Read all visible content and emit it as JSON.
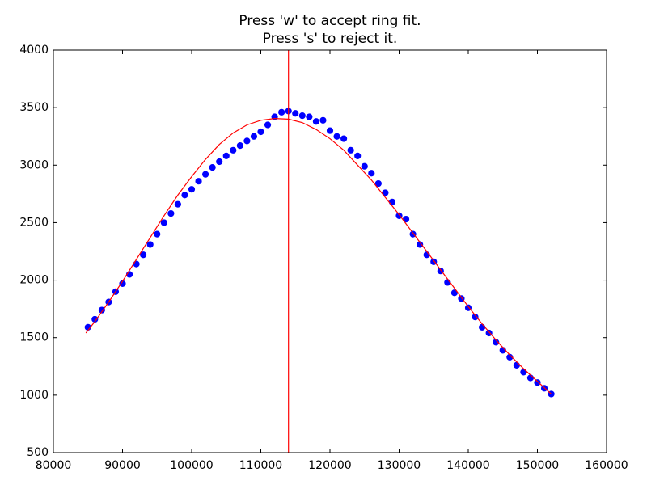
{
  "chart_data": {
    "type": "scatter",
    "title": [
      "Press 'w' to accept ring fit.",
      "Press 's' to reject it."
    ],
    "xlim": [
      80000,
      160000
    ],
    "xticks": [
      80000,
      90000,
      100000,
      110000,
      120000,
      130000,
      140000,
      150000,
      160000
    ],
    "ylim": [
      500,
      4000
    ],
    "yticks": [
      500,
      1000,
      1500,
      2000,
      2500,
      3000,
      3500,
      4000
    ],
    "series": [
      {
        "type": "scatter",
        "color": "#0000ff",
        "x": [
          85000,
          86000,
          87000,
          88000,
          89000,
          90000,
          91000,
          92000,
          93000,
          94000,
          95000,
          96000,
          97000,
          98000,
          99000,
          100000,
          101000,
          102000,
          103000,
          104000,
          105000,
          106000,
          107000,
          108000,
          109000,
          110000,
          111000,
          112000,
          113000,
          114000,
          115000,
          116000,
          117000,
          118000,
          119000,
          120000,
          121000,
          122000,
          123000,
          124000,
          125000,
          126000,
          127000,
          128000,
          129000,
          130000,
          131000,
          132000,
          133000,
          134000,
          135000,
          136000,
          137000,
          138000,
          139000,
          140000,
          141000,
          142000,
          143000,
          144000,
          145000,
          146000,
          147000,
          148000,
          149000,
          150000,
          151000,
          152000
        ],
        "values": [
          1590,
          1660,
          1740,
          1810,
          1900,
          1970,
          2050,
          2140,
          2220,
          2310,
          2400,
          2500,
          2580,
          2660,
          2740,
          2790,
          2860,
          2920,
          2980,
          3030,
          3080,
          3130,
          3170,
          3210,
          3250,
          3290,
          3350,
          3420,
          3460,
          3470,
          3450,
          3430,
          3420,
          3380,
          3390,
          3300,
          3250,
          3230,
          3130,
          3080,
          2990,
          2930,
          2840,
          2760,
          2680,
          2560,
          2530,
          2400,
          2310,
          2220,
          2160,
          2080,
          1980,
          1890,
          1840,
          1760,
          1680,
          1590,
          1540,
          1460,
          1390,
          1330,
          1260,
          1200,
          1150,
          1110,
          1060,
          1010
        ]
      },
      {
        "type": "line",
        "color": "#ff0000",
        "x": [
          84700,
          86000,
          88000,
          90000,
          92000,
          94000,
          96000,
          98000,
          100000,
          102000,
          104000,
          106000,
          108000,
          110000,
          112000,
          114000,
          116000,
          118000,
          120000,
          122000,
          124000,
          126000,
          128000,
          130000,
          132000,
          134000,
          136000,
          138000,
          140000,
          142000,
          144000,
          146000,
          148000,
          150000,
          152000
        ],
        "values": [
          1540,
          1640,
          1810,
          1990,
          2180,
          2370,
          2560,
          2740,
          2900,
          3050,
          3180,
          3280,
          3350,
          3390,
          3405,
          3400,
          3370,
          3310,
          3230,
          3130,
          3000,
          2870,
          2720,
          2570,
          2410,
          2250,
          2090,
          1930,
          1770,
          1620,
          1480,
          1350,
          1230,
          1120,
          1010
        ]
      }
    ],
    "vlines": [
      {
        "x": 114000,
        "color": "#ff0000"
      }
    ]
  }
}
